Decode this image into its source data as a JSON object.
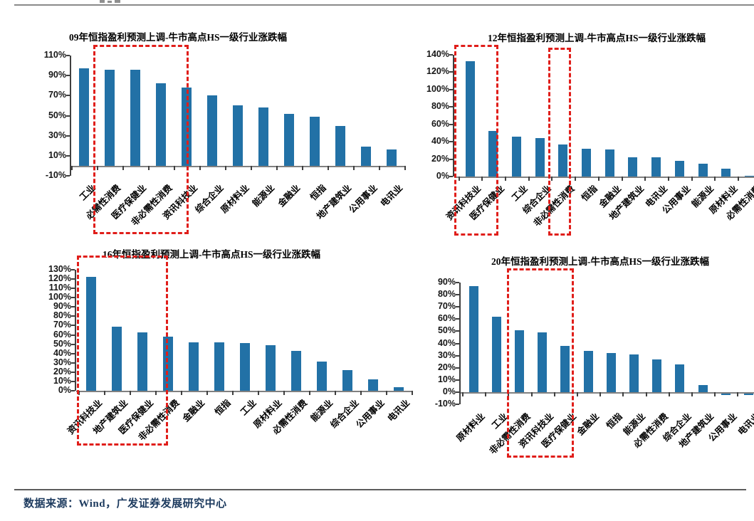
{
  "page": {
    "footer": {
      "source_text": "数据来源：Wind，广发证券发展研究中心"
    }
  },
  "colors": {
    "bar": "#2271a6",
    "highlight": "#e01e1a",
    "axis_line": "#808080",
    "footer_text": "#1c3a5e"
  },
  "chart_data": [
    {
      "type": "bar",
      "title": "09年恒指盈利预测上调-牛市高点HS一级行业涨跌幅",
      "categories": [
        "工业",
        "必需性消费",
        "医疗保健业",
        "非必需性消费",
        "资讯科技业",
        "综合企业",
        "原材料业",
        "能源业",
        "金融业",
        "恒指",
        "地产建筑业",
        "公用事业",
        "电讯业"
      ],
      "values": [
        97,
        96,
        96,
        82,
        78,
        70,
        60,
        58,
        52,
        49,
        40,
        19,
        16
      ],
      "unit": "%",
      "ylim": [
        -10,
        110
      ],
      "ytick_step": 20,
      "yticks": [
        "110%",
        "90%",
        "70%",
        "50%",
        "30%",
        "10%",
        "-10%"
      ],
      "grid": false,
      "legend": "none",
      "highlighted_categories": [
        "必需性消费",
        "医疗保健业",
        "非必需性消费",
        "资讯科技业"
      ]
    },
    {
      "type": "bar",
      "title": "12年恒指盈利预测上调-牛市高点HS一级行业涨跌幅",
      "categories": [
        "资讯科技业",
        "医疗保健业",
        "工业",
        "综合企业",
        "非必需性消费",
        "恒指",
        "金融业",
        "地产建筑业",
        "电讯业",
        "公用事业",
        "能源业",
        "原材料业",
        "必需性消费"
      ],
      "values": [
        133,
        52,
        46,
        44,
        37,
        32,
        31,
        22,
        22,
        18,
        15,
        9,
        1
      ],
      "unit": "%",
      "ylim": [
        0,
        140
      ],
      "ytick_step": 20,
      "yticks": [
        "140%",
        "120%",
        "100%",
        "80%",
        "60%",
        "40%",
        "20%",
        "0%"
      ],
      "grid": false,
      "legend": "none",
      "highlighted_categories": [
        "资讯科技业",
        "医疗保健业",
        "非必需性消费"
      ]
    },
    {
      "type": "bar",
      "title": "16年恒指盈利预测上调-牛市高点HS一级行业涨跌幅",
      "categories": [
        "资讯科技业",
        "地产建筑业",
        "医疗保健业",
        "非必需性消费",
        "金融业",
        "恒指",
        "工业",
        "原材料业",
        "必需性消费",
        "能源业",
        "综合企业",
        "公用事业",
        "电讯业"
      ],
      "values": [
        122,
        69,
        63,
        58,
        52,
        52,
        51,
        49,
        43,
        31,
        22,
        12,
        4
      ],
      "unit": "%",
      "ylim": [
        0,
        130
      ],
      "ytick_step": 10,
      "yticks": [
        "130%",
        "120%",
        "110%",
        "100%",
        "90%",
        "80%",
        "70%",
        "60%",
        "50%",
        "40%",
        "30%",
        "20%",
        "10%",
        "0%"
      ],
      "grid": false,
      "legend": "none",
      "highlighted_categories": [
        "资讯科技业",
        "地产建筑业",
        "医疗保健业",
        "非必需性消费"
      ]
    },
    {
      "type": "bar",
      "title": "20年恒指盈利预测上调-牛市高点HS一级行业涨跌幅",
      "categories": [
        "原材料业",
        "工业",
        "非必需性消费",
        "资讯科技业",
        "医疗保健业",
        "金融业",
        "恒指",
        "能源业",
        "必需性消费",
        "综合企业",
        "地产建筑业",
        "公用事业",
        "电讯业"
      ],
      "values": [
        87,
        62,
        51,
        49,
        38,
        34,
        32,
        31,
        27,
        23,
        6,
        -1,
        -1
      ],
      "unit": "%",
      "ylim": [
        -10,
        90
      ],
      "ytick_step": 10,
      "yticks": [
        "90%",
        "80%",
        "70%",
        "60%",
        "50%",
        "40%",
        "30%",
        "20%",
        "10%",
        "0%",
        "-10%"
      ],
      "grid": false,
      "legend": "none",
      "highlighted_categories": [
        "非必需性消费",
        "资讯科技业",
        "医疗保健业"
      ]
    }
  ]
}
